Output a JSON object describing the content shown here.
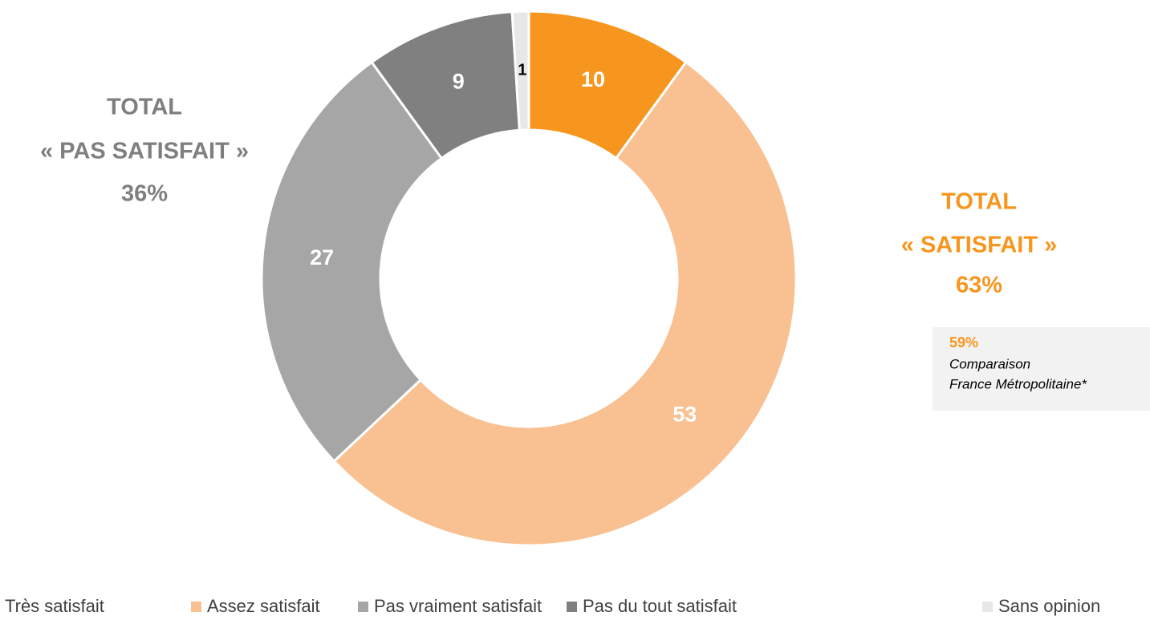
{
  "chart_data": {
    "type": "donut",
    "categories": [
      "Très satisfait",
      "Assez satisfait",
      "Pas vraiment satisfait",
      "Pas du tout satisfait",
      "Sans opinion"
    ],
    "values": [
      10,
      53,
      27,
      9,
      1
    ],
    "colors": [
      "#f7961e",
      "#f9c192",
      "#a6a6a6",
      "#808080",
      "#e7e7e7"
    ],
    "annotations": [
      {
        "lines": [
          "TOTAL",
          "« PAS SATISFAIT »",
          "36%"
        ],
        "color": "#7f7f7f"
      },
      {
        "lines": [
          "TOTAL",
          "« SATISFAIT »",
          "63%"
        ],
        "color": "#f7961e"
      }
    ],
    "comparison": {
      "value": "59%",
      "lines": [
        "Comparaison",
        "France Métropolitaine*"
      ]
    }
  }
}
